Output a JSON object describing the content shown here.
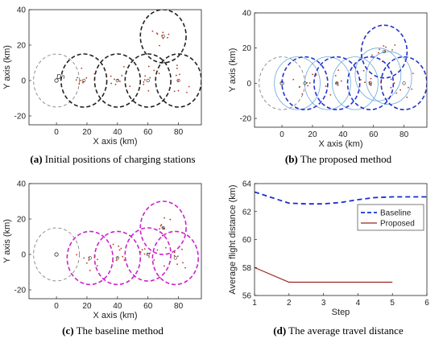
{
  "captions": {
    "a": {
      "label": "(a)",
      "text": " Initial positions of charging stations"
    },
    "b": {
      "label": "(b)",
      "text": " The proposed method"
    },
    "c": {
      "label": "(c)",
      "text": " The baseline method"
    },
    "d": {
      "label": "(d)",
      "text": " The average travel distance"
    }
  },
  "chart_data": [
    {
      "type": "scatter",
      "panel": "a",
      "xlabel": "X axis (km)",
      "ylabel": "Y axis (km)",
      "xlim": [
        -18,
        95
      ],
      "ylim": [
        -25,
        40
      ],
      "xticks": [
        0,
        20,
        40,
        60,
        80
      ],
      "yticks": [
        -20,
        0,
        20,
        40
      ],
      "annotation": {
        "text": "Dn",
        "x": 0,
        "y": 0
      },
      "depot": {
        "x": 0,
        "y": 0
      },
      "depot_circle": {
        "center": [
          0,
          0
        ],
        "radius": 15,
        "color": "#777777"
      },
      "stations": [
        {
          "center": [
            18,
            0
          ],
          "radius": 15,
          "color": "#222222"
        },
        {
          "center": [
            40,
            0
          ],
          "radius": 15,
          "color": "#222222"
        },
        {
          "center": [
            60,
            0
          ],
          "radius": 15,
          "color": "#222222"
        },
        {
          "center": [
            70,
            25
          ],
          "radius": 15,
          "color": "#222222"
        },
        {
          "center": [
            80,
            0
          ],
          "radius": 15,
          "color": "#222222"
        }
      ],
      "station_markers": [
        [
          18,
          0
        ],
        [
          40,
          0
        ],
        [
          60,
          0
        ],
        [
          70,
          25
        ],
        [
          80,
          0
        ]
      ]
    },
    {
      "type": "scatter",
      "panel": "b",
      "xlabel": "X axis (km)",
      "ylabel": "Y axis (km)",
      "xlim": [
        -18,
        95
      ],
      "ylim": [
        -25,
        40
      ],
      "xticks": [
        0,
        20,
        40,
        60,
        80
      ],
      "yticks": [
        -20,
        0,
        20,
        40
      ],
      "depot": {
        "x": 0,
        "y": 0
      },
      "depot_circle": {
        "center": [
          0,
          0
        ],
        "radius": 15,
        "color": "#777777"
      },
      "stations": [
        {
          "center": [
            15,
            0
          ],
          "radius": 15,
          "color": "#2233cc"
        },
        {
          "center": [
            36,
            0
          ],
          "radius": 15,
          "color": "#2233cc"
        },
        {
          "center": [
            58,
            0
          ],
          "radius": 15,
          "color": "#2233cc"
        },
        {
          "center": [
            67,
            18
          ],
          "radius": 15,
          "color": "#2233cc"
        },
        {
          "center": [
            80,
            0
          ],
          "radius": 15,
          "color": "#2233cc"
        }
      ],
      "coverage_circles": [
        {
          "center": [
            10,
            0
          ],
          "radius": 15,
          "color": "#6aa6d8"
        },
        {
          "center": [
            30,
            0
          ],
          "radius": 15,
          "color": "#6aa6d8"
        },
        {
          "center": [
            48,
            0
          ],
          "radius": 15,
          "color": "#6aa6d8"
        },
        {
          "center": [
            63,
            5
          ],
          "radius": 15,
          "color": "#6aa6d8"
        },
        {
          "center": [
            70,
            3
          ],
          "radius": 15,
          "color": "#6aa6d8"
        }
      ],
      "station_markers": [
        [
          15,
          0
        ],
        [
          36,
          0
        ],
        [
          58,
          0
        ],
        [
          67,
          18
        ],
        [
          80,
          0
        ]
      ]
    },
    {
      "type": "scatter",
      "panel": "c",
      "xlabel": "X axis (km)",
      "ylabel": "Y axis (km)",
      "xlim": [
        -18,
        95
      ],
      "ylim": [
        -25,
        40
      ],
      "xticks": [
        0,
        20,
        40,
        60,
        80
      ],
      "yticks": [
        -20,
        0,
        20,
        40
      ],
      "depot": {
        "x": 0,
        "y": 0
      },
      "depot_circle": {
        "center": [
          0,
          0
        ],
        "radius": 15,
        "color": "#777777"
      },
      "stations": [
        {
          "center": [
            22,
            -2
          ],
          "radius": 15,
          "color": "#cc22cc"
        },
        {
          "center": [
            40,
            -2
          ],
          "radius": 15,
          "color": "#cc22cc"
        },
        {
          "center": [
            60,
            0
          ],
          "radius": 15,
          "color": "#cc22cc"
        },
        {
          "center": [
            70,
            15
          ],
          "radius": 15,
          "color": "#cc22cc"
        },
        {
          "center": [
            78,
            -2
          ],
          "radius": 15,
          "color": "#cc22cc"
        }
      ],
      "station_markers": [
        [
          22,
          -2
        ],
        [
          40,
          -2
        ],
        [
          60,
          0
        ],
        [
          70,
          15
        ],
        [
          78,
          -2
        ]
      ]
    },
    {
      "type": "line",
      "panel": "d",
      "xlabel": "Step",
      "ylabel": "Average flight distance (km)",
      "xlim": [
        1,
        6
      ],
      "ylim": [
        56,
        64
      ],
      "xticks": [
        1,
        2,
        3,
        4,
        5,
        6
      ],
      "yticks": [
        56,
        58,
        60,
        62,
        64
      ],
      "legend": "right",
      "series": [
        {
          "name": "Baseline",
          "color": "#1a2ec8",
          "dash": true,
          "x": [
            1,
            1.5,
            2,
            2.5,
            3,
            3.5,
            4,
            4.5,
            5,
            5.5,
            6
          ],
          "y": [
            63.4,
            63.0,
            62.6,
            62.55,
            62.55,
            62.65,
            62.85,
            63.0,
            63.05,
            63.05,
            63.05
          ]
        },
        {
          "name": "Proposed",
          "color": "#9b2222",
          "dash": false,
          "x": [
            1,
            2,
            3,
            4,
            5
          ],
          "y": [
            58.0,
            56.95,
            56.95,
            56.95,
            56.95
          ]
        }
      ]
    }
  ]
}
